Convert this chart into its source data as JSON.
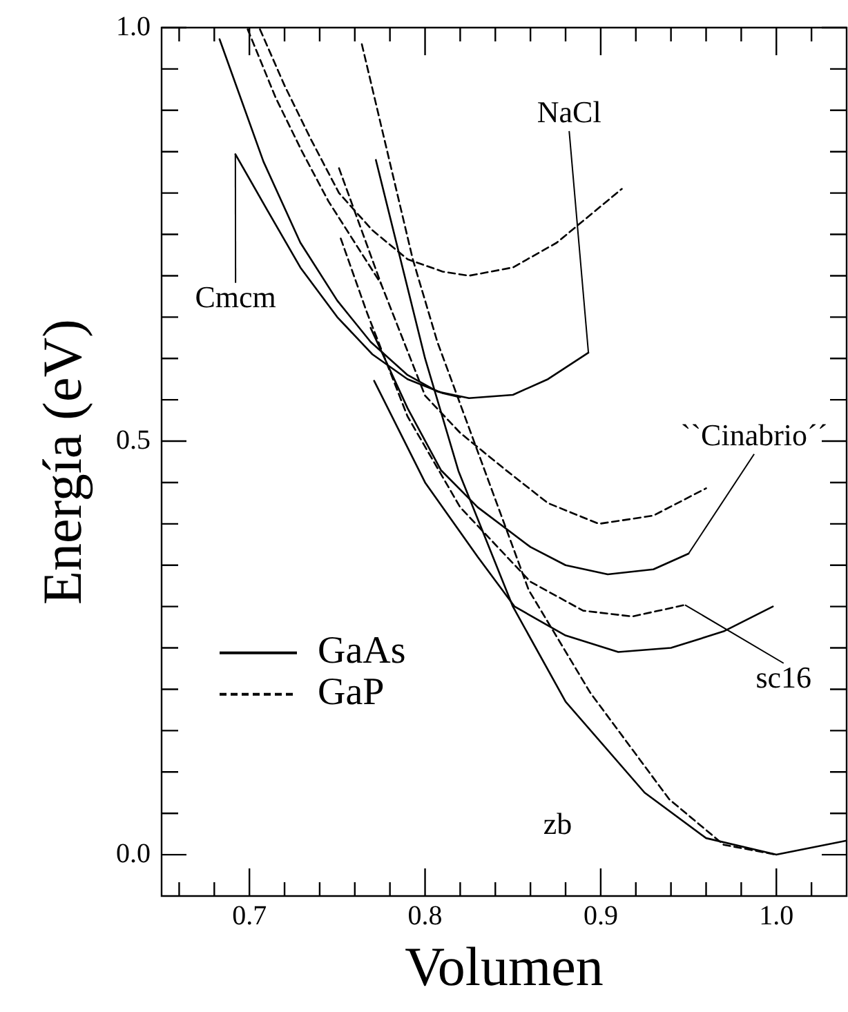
{
  "chart_data": {
    "type": "line",
    "xlabel": "Volumen",
    "ylabel": "Energía (eV)",
    "xlim": [
      0.65,
      1.04
    ],
    "ylim": [
      -0.05,
      1.0
    ],
    "xticks": [
      {
        "value": 0.66,
        "label": null
      },
      {
        "value": 0.68,
        "label": null
      },
      0.7,
      {
        "value": 0.72,
        "label": null
      },
      {
        "value": 0.74,
        "label": null
      },
      {
        "value": 0.76,
        "label": null
      },
      {
        "value": 0.78,
        "label": null
      },
      0.8,
      {
        "value": 0.82,
        "label": null
      },
      {
        "value": 0.84,
        "label": null
      },
      {
        "value": 0.86,
        "label": null
      },
      {
        "value": 0.88,
        "label": null
      },
      0.9,
      {
        "value": 0.92,
        "label": null
      },
      {
        "value": 0.94,
        "label": null
      },
      {
        "value": 0.96,
        "label": null
      },
      {
        "value": 0.98,
        "label": null
      },
      {
        "value": 1.0,
        "label": "1.0"
      },
      {
        "value": 1.02,
        "label": null
      }
    ],
    "yticks": [
      {
        "value": 0.0,
        "label": "0.0"
      },
      {
        "value": 0.05,
        "label": null
      },
      {
        "value": 0.1,
        "label": null
      },
      {
        "value": 0.15,
        "label": null
      },
      {
        "value": 0.2,
        "label": null
      },
      {
        "value": 0.25,
        "label": null
      },
      {
        "value": 0.3,
        "label": null
      },
      {
        "value": 0.35,
        "label": null
      },
      {
        "value": 0.4,
        "label": null
      },
      {
        "value": 0.45,
        "label": null
      },
      0.5,
      {
        "value": 0.55,
        "label": null
      },
      {
        "value": 0.6,
        "label": null
      },
      {
        "value": 0.65,
        "label": null
      },
      {
        "value": 0.7,
        "label": null
      },
      {
        "value": 0.75,
        "label": null
      },
      {
        "value": 0.8,
        "label": null
      },
      {
        "value": 0.85,
        "label": null
      },
      {
        "value": 0.9,
        "label": null
      },
      {
        "value": 0.95,
        "label": null
      },
      {
        "value": 1.0,
        "label": "1.0"
      }
    ],
    "grid": false,
    "legend": "left",
    "marker": "none",
    "series": [
      {
        "name": "GaAs",
        "color": "#000000",
        "line_style": "solid",
        "x": [
          0.772,
          0.8,
          0.819,
          0.85,
          0.88,
          0.925,
          0.96,
          1.0,
          1.04
        ],
        "values": [
          0.84,
          0.6,
          0.464,
          0.3,
          0.185,
          0.075,
          0.02,
          0,
          0.017
        ]
      },
      {
        "name": "GaP",
        "color": "#000000",
        "line_style": "dashed",
        "x": [
          0.764,
          0.793,
          0.807,
          0.833,
          0.859,
          0.894,
          0.939,
          0.97,
          1.0
        ],
        "values": [
          0.98,
          0.72,
          0.62,
          0.47,
          0.32,
          0.196,
          0.067,
          0.012,
          0
        ]
      },
      {
        "color": "#000000",
        "line_style": "solid",
        "x": [
          0.771,
          0.8,
          0.83,
          0.851,
          0.88,
          0.91,
          0.94,
          0.97,
          0.998
        ],
        "values": [
          0.573,
          0.45,
          0.36,
          0.3,
          0.265,
          0.245,
          0.25,
          0.27,
          0.3
        ]
      },
      {
        "color": "#000000",
        "line_style": "dashed",
        "x": [
          0.752,
          0.767,
          0.79,
          0.82,
          0.86,
          0.89,
          0.918,
          0.948
        ],
        "values": [
          0.745,
          0.655,
          0.53,
          0.42,
          0.33,
          0.295,
          0.288,
          0.302
        ]
      },
      {
        "color": "#000000",
        "line_style": "solid",
        "x": [
          0.769,
          0.79,
          0.809,
          0.83,
          0.86,
          0.88,
          0.904,
          0.93,
          0.95
        ],
        "values": [
          0.637,
          0.54,
          0.465,
          0.42,
          0.372,
          0.35,
          0.339,
          0.345,
          0.364
        ]
      },
      {
        "color": "#000000",
        "line_style": "dashed",
        "x": [
          0.751,
          0.775,
          0.8,
          0.82,
          0.846,
          0.87,
          0.899,
          0.93,
          0.96
        ],
        "values": [
          0.83,
          0.69,
          0.555,
          0.51,
          0.465,
          0.425,
          0.4,
          0.41,
          0.443
        ]
      },
      {
        "color": "#000000",
        "line_style": "solid",
        "x": [
          0.683,
          0.708,
          0.729,
          0.75,
          0.769,
          0.79,
          0.807,
          0.825,
          0.85,
          0.87,
          0.893
        ],
        "values": [
          0.986,
          0.838,
          0.74,
          0.67,
          0.62,
          0.58,
          0.56,
          0.552,
          0.556,
          0.575,
          0.607
        ]
      },
      {
        "color": "#000000",
        "line_style": "dashed",
        "x": [
          0.706,
          0.72,
          0.735,
          0.751,
          0.77,
          0.79,
          0.81,
          0.825,
          0.85,
          0.875,
          0.912
        ],
        "values": [
          0.998,
          0.93,
          0.865,
          0.8,
          0.755,
          0.72,
          0.705,
          0.7,
          0.71,
          0.74,
          0.805
        ]
      },
      {
        "color": "#000000",
        "line_style": "solid",
        "x": [
          0.692,
          0.71,
          0.729,
          0.75,
          0.77,
          0.79,
          0.81,
          0.82
        ],
        "values": [
          0.847,
          0.78,
          0.71,
          0.65,
          0.605,
          0.575,
          0.558,
          0.553
        ]
      },
      {
        "color": "#000000",
        "line_style": "dashed",
        "x": [
          0.699,
          0.715,
          0.73,
          0.745,
          0.76,
          0.775
        ],
        "values": [
          0.998,
          0.915,
          0.85,
          0.79,
          0.74,
          0.69
        ]
      }
    ],
    "annotations": [
      {
        "text": "NaCl",
        "x": 0.893,
        "y": 0.607
      },
      {
        "text": "Cmcm",
        "x": 0.692,
        "y": 0.847
      },
      {
        "text": "``Cinabrio´´",
        "x": 0.95,
        "y": 0.364
      },
      {
        "text": "sc16",
        "x": 0.948,
        "y": 0.302
      },
      "zb"
    ]
  }
}
